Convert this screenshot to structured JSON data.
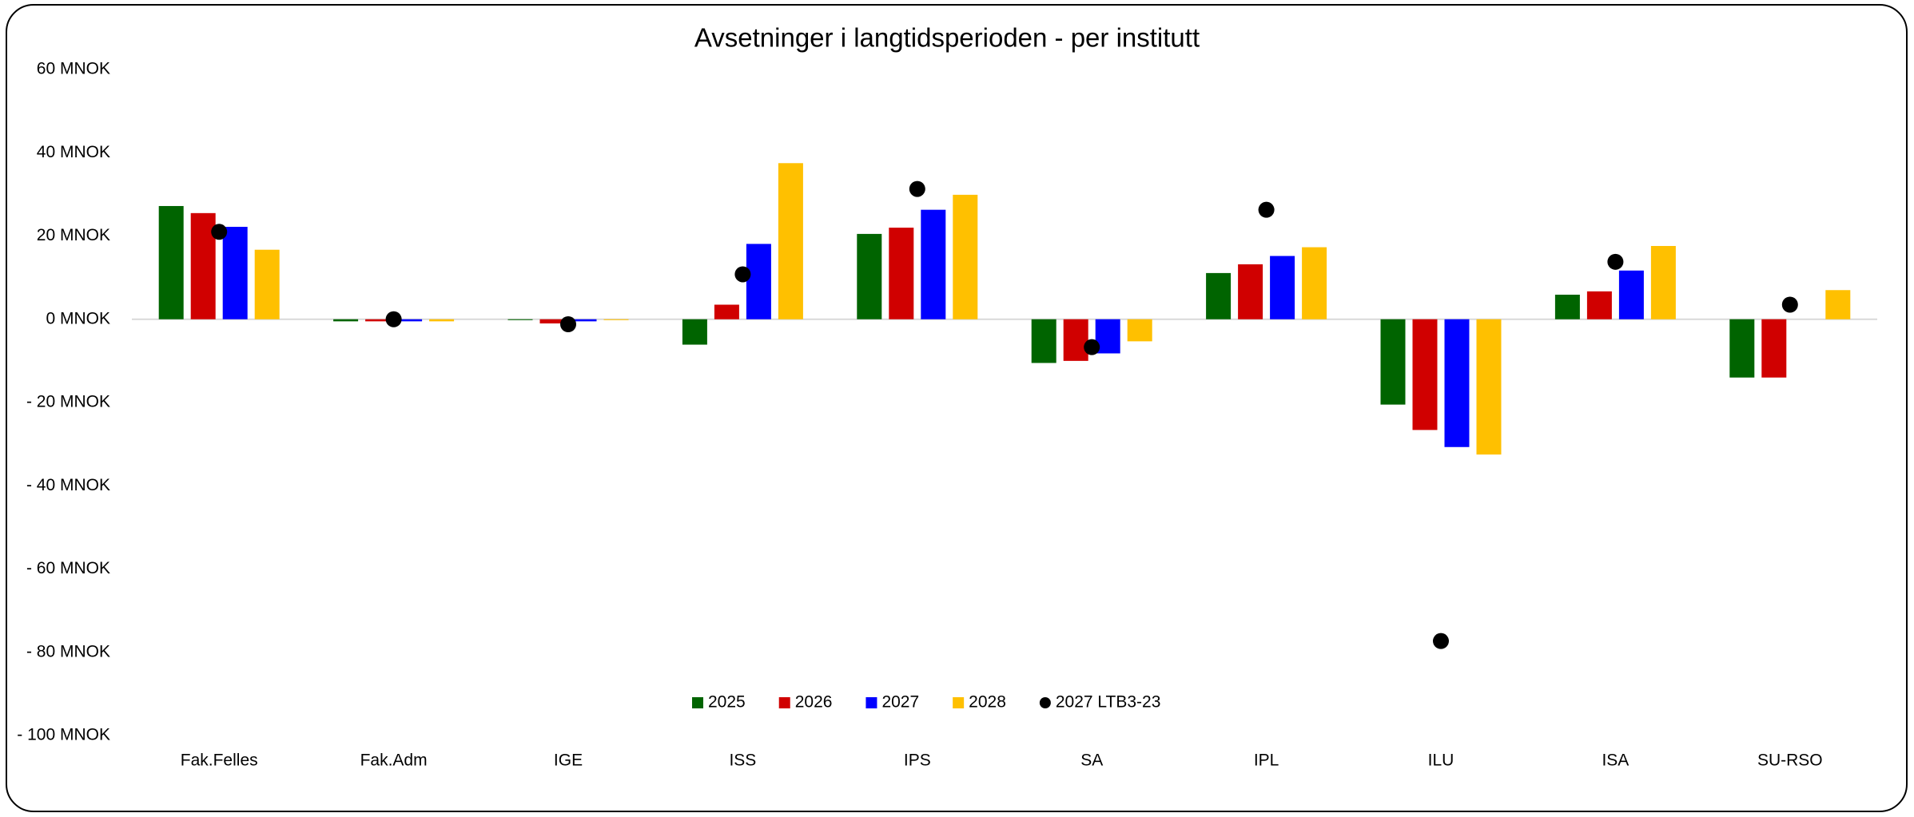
{
  "chart_data": {
    "type": "bar",
    "title": "Avsetninger i langtidsperioden - per institutt",
    "categories": [
      "Fak.Felles",
      "Fak.Adm",
      "IGE",
      "ISS",
      "IPS",
      "SA",
      "IPL",
      "ILU",
      "ISA",
      "SU-RSO"
    ],
    "series": [
      {
        "name": "2025",
        "color": "#006400",
        "values": [
          27.2,
          -0.5,
          -0.2,
          -6.1,
          20.5,
          -10.5,
          11.1,
          -20.5,
          5.9,
          -14
        ]
      },
      {
        "name": "2026",
        "color": "#d00000",
        "values": [
          25.5,
          -0.5,
          -1,
          3.5,
          22,
          -10,
          13.2,
          -26.6,
          6.7,
          -14
        ]
      },
      {
        "name": "2027",
        "color": "#0000ff",
        "values": [
          22.2,
          -0.5,
          -0.5,
          18.1,
          26.3,
          -8.2,
          15.2,
          -30.7,
          11.7,
          0
        ]
      },
      {
        "name": "2028",
        "color": "#ffc000",
        "values": [
          16.7,
          -0.5,
          -0.2,
          37.5,
          29.9,
          -5.3,
          17.3,
          -32.5,
          17.6,
          7
        ]
      },
      {
        "name": "2027 LTB3-23",
        "color": "#000000",
        "type": "scatter",
        "values": [
          21,
          0,
          -1.2,
          10.8,
          31.3,
          -6.7,
          26.3,
          -77.3,
          13.8,
          3.5
        ]
      }
    ],
    "ylim": [
      -100,
      60
    ],
    "yticks": [
      {
        "value": -100,
        "label": "- 100 MNOK"
      },
      {
        "value": -80,
        "label": "- 80 MNOK"
      },
      {
        "value": -60,
        "label": "- 60 MNOK"
      },
      {
        "value": -40,
        "label": "- 40 MNOK"
      },
      {
        "value": -20,
        "label": "- 20 MNOK"
      },
      {
        "value": 0,
        "label": "0 MNOK"
      },
      {
        "value": 20,
        "label": "20 MNOK"
      },
      {
        "value": 40,
        "label": "40 MNOK"
      },
      {
        "value": 60,
        "label": "60 MNOK"
      }
    ],
    "negative_tick_color": "#ff0000",
    "grid": false,
    "legend": "bottom"
  }
}
